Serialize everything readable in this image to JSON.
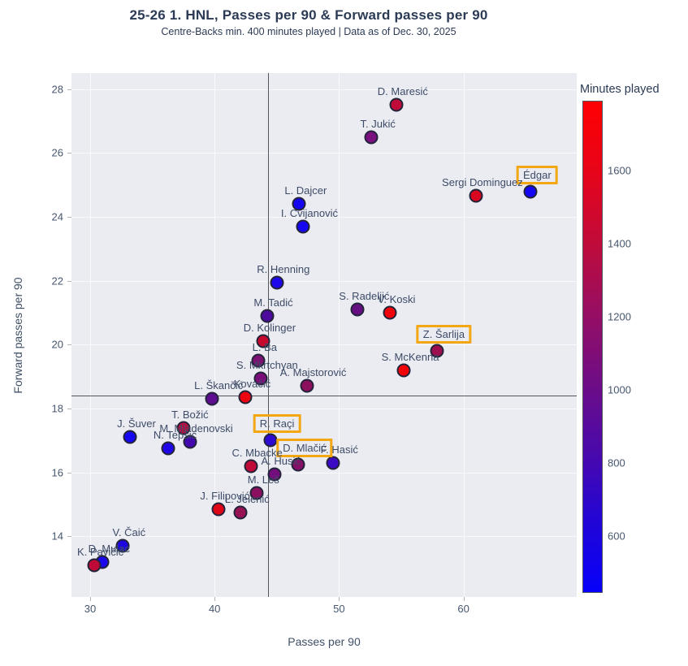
{
  "title": "25-26 1. HNL, Passes per 90 & Forward passes per 90",
  "subtitle": "Centre-Backs min. 400 minutes played | Data as of Dec. 30, 2025",
  "accent_box_color": "#f3a712",
  "chart_data": {
    "type": "scatter",
    "title": "25-26 1. HNL, Passes per 90 & Forward passes per 90",
    "subtitle": "Centre-Backs min. 400 minutes played | Data as of Dec. 30, 2025",
    "xlabel": "Passes per 90",
    "ylabel": "Forward passes per 90",
    "xlim": [
      28.5,
      69.1
    ],
    "ylim": [
      12.1,
      28.5
    ],
    "x_ticks": [
      30,
      40,
      50,
      60
    ],
    "y_ticks": [
      14,
      16,
      18,
      20,
      22,
      24,
      26,
      28
    ],
    "grid": true,
    "mean_line_x": 44.3,
    "mean_line_y": 18.4,
    "colorbar": {
      "title": "Minutes played",
      "ticks": [
        1600,
        1400,
        1200,
        1000,
        800,
        600
      ],
      "min": 450,
      "max": 1790,
      "gradient_top_to_bottom": [
        "#fe0002",
        "#e70419",
        "#c10b3a",
        "#970e62",
        "#6f0d85",
        "#4a09ab",
        "#2105d6",
        "#0701fa"
      ]
    },
    "points": [
      {
        "name": "D. Maresić",
        "x": 54.6,
        "y": 27.5,
        "color": "#c1093a",
        "boxed": false
      },
      {
        "name": "T. Jukić",
        "x": 52.6,
        "y": 26.5,
        "color": "#7a0f80",
        "boxed": false
      },
      {
        "name": "Édgar",
        "x": 65.4,
        "y": 24.8,
        "color": "#1607f2",
        "boxed": true
      },
      {
        "name": "Sergi Dominguez",
        "x": 61.0,
        "y": 24.65,
        "color": "#d9061f",
        "boxed": false
      },
      {
        "name": "L. Dajcer",
        "x": 46.8,
        "y": 24.4,
        "color": "#1607f2",
        "boxed": false
      },
      {
        "name": "I. Cvijanović",
        "x": 47.1,
        "y": 23.7,
        "color": "#1607f2",
        "boxed": false
      },
      {
        "name": "R. Henning",
        "x": 45.0,
        "y": 21.95,
        "color": "#1d08ec",
        "boxed": false
      },
      {
        "name": "S. Radeljić",
        "x": 51.5,
        "y": 21.1,
        "color": "#650f82",
        "boxed": false
      },
      {
        "name": "V. Koski",
        "x": 54.1,
        "y": 21.0,
        "color": "#f10309",
        "boxed": false
      },
      {
        "name": "M. Tadić",
        "x": 44.2,
        "y": 20.9,
        "color": "#4c0b9c",
        "boxed": false
      },
      {
        "name": "D. Kolinger",
        "x": 43.9,
        "y": 20.1,
        "color": "#c6082e",
        "boxed": false
      },
      {
        "name": "Z. Šarlija",
        "x": 57.9,
        "y": 19.8,
        "color": "#9c0e4e",
        "boxed": true
      },
      {
        "name": "L. Ba",
        "x": 43.5,
        "y": 19.5,
        "color": "#7d1173",
        "boxed": false
      },
      {
        "name": "S. McKenna",
        "x": 55.2,
        "y": 19.2,
        "color": "#f40306",
        "boxed": false
      },
      {
        "name": "S. Mkrtchyan",
        "x": 43.7,
        "y": 18.95,
        "color": "#7b0e7b",
        "boxed": false
      },
      {
        "name": "A. Majstorović",
        "x": 47.4,
        "y": 18.7,
        "color": "#8d105e",
        "boxed": false
      },
      {
        "name": "Kovačić",
        "x": 42.5,
        "y": 18.35,
        "color": "#ee0410",
        "boxed": false
      },
      {
        "name": "L. Škančić",
        "x": 39.8,
        "y": 18.3,
        "color": "#5e0c90",
        "boxed": false
      },
      {
        "name": "T. Božić",
        "x": 37.5,
        "y": 17.4,
        "color": "#bb0b40",
        "boxed": false
      },
      {
        "name": "J. Šuver",
        "x": 33.2,
        "y": 17.1,
        "color": "#1607f2",
        "boxed": false
      },
      {
        "name": "R. Raçi",
        "x": 44.5,
        "y": 17.0,
        "color": "#2e09d2",
        "boxed": true
      },
      {
        "name": "M. Mladenovski",
        "x": 38.0,
        "y": 16.95,
        "color": "#4409ae",
        "boxed": false
      },
      {
        "name": "N. Tepšić",
        "x": 36.3,
        "y": 16.75,
        "color": "#1d07e8",
        "boxed": false
      },
      {
        "name": "F. Hasić",
        "x": 49.5,
        "y": 16.3,
        "color": "#3c0ac4",
        "boxed": false
      },
      {
        "name": "D. Mlačić",
        "x": 46.7,
        "y": 16.25,
        "color": "#861068",
        "boxed": true
      },
      {
        "name": "C. Mbacke",
        "x": 42.9,
        "y": 16.2,
        "color": "#c00a38",
        "boxed": false
      },
      {
        "name": "A. Husić",
        "x": 44.8,
        "y": 15.95,
        "color": "#740e7e",
        "boxed": false
      },
      {
        "name": "M. Leš",
        "x": 43.4,
        "y": 15.35,
        "color": "#8c1060",
        "boxed": false
      },
      {
        "name": "J. Filipović",
        "x": 40.3,
        "y": 14.85,
        "color": "#e10518",
        "boxed": false
      },
      {
        "name": "L. Jelenić",
        "x": 42.1,
        "y": 14.75,
        "color": "#961253",
        "boxed": false
      },
      {
        "name": "V. Čaić",
        "x": 32.6,
        "y": 13.7,
        "color": "#1d06e0",
        "boxed": false
      },
      {
        "name": "D. Mulac",
        "x": 31.0,
        "y": 13.2,
        "color": "#1a07ee",
        "boxed": false
      },
      {
        "name": "K. Pavičić",
        "x": 30.3,
        "y": 13.1,
        "color": "#bf0a38",
        "boxed": false
      }
    ]
  }
}
